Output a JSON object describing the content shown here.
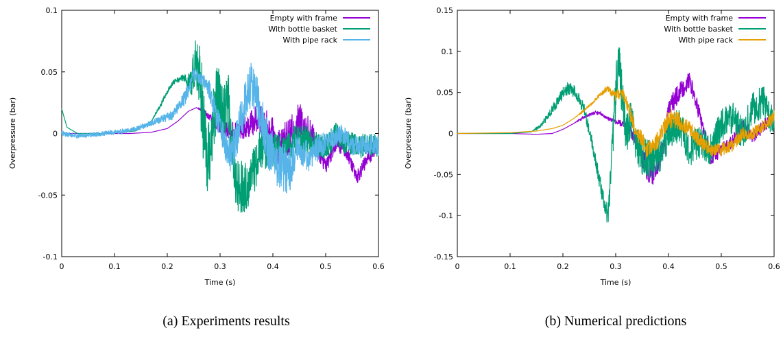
{
  "colors": {
    "empty_frame": "#9400d3",
    "bottle_basket": "#009e73",
    "pipe_rack_exp": "#56b4e9",
    "pipe_rack_num": "#e69f00"
  },
  "chart_data": [
    {
      "type": "line",
      "caption": "(a)  Experiments results",
      "xlabel": "Time (s)",
      "ylabel": "Overpressure (bar)",
      "xlim": [
        0,
        0.6
      ],
      "ylim": [
        -0.1,
        0.1
      ],
      "xticks": [
        "0",
        "0.1",
        "0.2",
        "0.3",
        "0.4",
        "0.5",
        "0.6"
      ],
      "yticks": [
        "-0.1",
        "-0.05",
        "0",
        "0.05",
        "0.1"
      ],
      "ytick_values": [
        -0.1,
        -0.05,
        0,
        0.05,
        0.1
      ],
      "legend_position": "top-right",
      "grid": false,
      "series": [
        {
          "name": "Empty with frame",
          "color_key": "empty_frame",
          "x": [
            0,
            0.03,
            0.08,
            0.13,
            0.17,
            0.2,
            0.22,
            0.24,
            0.255,
            0.27,
            0.29,
            0.31,
            0.33,
            0.35,
            0.37,
            0.39,
            0.41,
            0.43,
            0.45,
            0.47,
            0.49,
            0.5,
            0.52,
            0.54,
            0.56,
            0.58,
            0.6
          ],
          "y": [
            0.0,
            0.0,
            0.0,
            0.0,
            0.001,
            0.004,
            0.01,
            0.018,
            0.021,
            0.018,
            0.008,
            0.003,
            0.002,
            0.005,
            0.012,
            0.005,
            -0.01,
            -0.005,
            0.01,
            0.0,
            -0.015,
            -0.025,
            -0.008,
            -0.015,
            -0.035,
            -0.02,
            -0.01
          ],
          "noise": [
            0,
            0,
            0,
            0,
            0,
            0,
            0,
            0,
            0,
            0.002,
            0.004,
            0.006,
            0.008,
            0.01,
            0.012,
            0.014,
            0.016,
            0.016,
            0.016,
            0.014,
            0.01,
            0.008,
            0.006,
            0.006,
            0.006,
            0.006,
            0.006
          ]
        },
        {
          "name": "With bottle basket",
          "color_key": "bottle_basket",
          "x": [
            0,
            0.01,
            0.03,
            0.08,
            0.14,
            0.17,
            0.19,
            0.205,
            0.215,
            0.23,
            0.245,
            0.255,
            0.265,
            0.275,
            0.285,
            0.295,
            0.305,
            0.315,
            0.33,
            0.345,
            0.36,
            0.38,
            0.4,
            0.42,
            0.44,
            0.46,
            0.48,
            0.5,
            0.52,
            0.54,
            0.56,
            0.58,
            0.6
          ],
          "y": [
            0.02,
            0.005,
            0.0,
            0.0,
            0.002,
            0.01,
            0.025,
            0.038,
            0.043,
            0.045,
            0.04,
            0.065,
            0.03,
            -0.03,
            0.0,
            0.035,
            0.01,
            0.03,
            -0.04,
            -0.045,
            -0.035,
            -0.01,
            -0.015,
            -0.015,
            -0.005,
            -0.005,
            -0.01,
            -0.012,
            0.0,
            -0.008,
            -0.01,
            -0.01,
            -0.01
          ],
          "noise": [
            0,
            0,
            0,
            0,
            0,
            0,
            0.002,
            0.002,
            0.002,
            0.003,
            0.01,
            0.025,
            0.035,
            0.03,
            0.03,
            0.025,
            0.025,
            0.025,
            0.025,
            0.02,
            0.02,
            0.018,
            0.016,
            0.014,
            0.012,
            0.012,
            0.012,
            0.01,
            0.01,
            0.01,
            0.01,
            0.01,
            0.01
          ]
        },
        {
          "name": "With pipe rack",
          "color_key": "pipe_rack_exp",
          "x": [
            0,
            0.03,
            0.08,
            0.12,
            0.15,
            0.18,
            0.21,
            0.235,
            0.25,
            0.265,
            0.28,
            0.29,
            0.3,
            0.31,
            0.32,
            0.33,
            0.345,
            0.36,
            0.375,
            0.39,
            0.41,
            0.43,
            0.45,
            0.47,
            0.49,
            0.51,
            0.53,
            0.55,
            0.57,
            0.59,
            0.6
          ],
          "y": [
            0.0,
            -0.002,
            0.0,
            0.002,
            0.005,
            0.01,
            0.015,
            0.03,
            0.048,
            0.045,
            0.035,
            0.02,
            0.005,
            -0.01,
            -0.02,
            -0.005,
            0.02,
            0.04,
            0.02,
            -0.01,
            -0.025,
            -0.03,
            -0.01,
            -0.02,
            -0.01,
            -0.005,
            0.0,
            -0.01,
            -0.01,
            -0.008,
            -0.01
          ],
          "noise": [
            0.002,
            0.002,
            0.002,
            0.002,
            0.002,
            0.003,
            0.004,
            0.006,
            0.006,
            0.006,
            0.008,
            0.01,
            0.012,
            0.014,
            0.015,
            0.016,
            0.018,
            0.02,
            0.02,
            0.02,
            0.02,
            0.02,
            0.015,
            0.012,
            0.01,
            0.008,
            0.008,
            0.008,
            0.008,
            0.008,
            0.008
          ]
        }
      ]
    },
    {
      "type": "line",
      "caption": "(b) Numerical predictions",
      "xlabel": "Time (s)",
      "ylabel": "Overpressure (bar)",
      "xlim": [
        0,
        0.6
      ],
      "ylim": [
        -0.15,
        0.15
      ],
      "xticks": [
        "0",
        "0.1",
        "0.2",
        "0.3",
        "0.4",
        "0.5",
        "0.6"
      ],
      "yticks": [
        "-0.15",
        "-0.1",
        "-0.05",
        "0",
        "0.05",
        "0.1",
        "0.15"
      ],
      "ytick_values": [
        -0.15,
        -0.1,
        -0.05,
        0,
        0.05,
        0.1,
        0.15
      ],
      "legend_position": "top-right",
      "grid": false,
      "series": [
        {
          "name": "Empty with frame",
          "color_key": "empty_frame",
          "x": [
            0,
            0.1,
            0.15,
            0.18,
            0.2,
            0.22,
            0.24,
            0.26,
            0.27,
            0.28,
            0.3,
            0.32,
            0.34,
            0.36,
            0.37,
            0.38,
            0.39,
            0.4,
            0.42,
            0.44,
            0.46,
            0.48,
            0.5,
            0.52,
            0.54,
            0.56,
            0.58,
            0.6
          ],
          "y": [
            0.0,
            0.0,
            -0.001,
            0.0,
            0.005,
            0.012,
            0.02,
            0.025,
            0.025,
            0.02,
            0.015,
            0.01,
            -0.01,
            -0.045,
            -0.05,
            -0.035,
            -0.02,
            0.03,
            0.05,
            0.065,
            0.02,
            -0.03,
            -0.02,
            -0.01,
            0.01,
            -0.005,
            0.01,
            0.02
          ],
          "noise": [
            0,
            0,
            0,
            0,
            0,
            0,
            0.002,
            0.002,
            0.002,
            0.002,
            0.003,
            0.005,
            0.01,
            0.015,
            0.015,
            0.015,
            0.012,
            0.012,
            0.012,
            0.01,
            0.01,
            0.01,
            0.008,
            0.008,
            0.008,
            0.008,
            0.008,
            0.008
          ]
        },
        {
          "name": "With bottle basket",
          "color_key": "bottle_basket",
          "x": [
            0,
            0.1,
            0.14,
            0.16,
            0.18,
            0.2,
            0.21,
            0.225,
            0.24,
            0.255,
            0.27,
            0.28,
            0.285,
            0.29,
            0.295,
            0.3,
            0.305,
            0.31,
            0.32,
            0.33,
            0.34,
            0.36,
            0.38,
            0.4,
            0.42,
            0.44,
            0.46,
            0.48,
            0.5,
            0.52,
            0.54,
            0.56,
            0.58,
            0.6
          ],
          "y": [
            0.0,
            0.0,
            0.002,
            0.01,
            0.03,
            0.048,
            0.055,
            0.05,
            0.03,
            -0.01,
            -0.06,
            -0.09,
            -0.1,
            -0.06,
            0.0,
            0.05,
            0.1,
            0.06,
            0.0,
            0.02,
            -0.02,
            -0.03,
            -0.03,
            0.0,
            0.01,
            -0.02,
            -0.01,
            -0.02,
            0.01,
            0.02,
            0.0,
            0.03,
            0.04,
            0.01
          ],
          "noise": [
            0,
            0,
            0,
            0.003,
            0.006,
            0.008,
            0.008,
            0.008,
            0.008,
            0.008,
            0.01,
            0.012,
            0.015,
            0.02,
            0.025,
            0.03,
            0.03,
            0.028,
            0.025,
            0.025,
            0.025,
            0.025,
            0.025,
            0.022,
            0.022,
            0.02,
            0.02,
            0.02,
            0.02,
            0.02,
            0.02,
            0.02,
            0.02,
            0.02
          ]
        },
        {
          "name": "With pipe rack",
          "color_key": "pipe_rack_num",
          "x": [
            0,
            0.1,
            0.15,
            0.18,
            0.2,
            0.22,
            0.24,
            0.26,
            0.275,
            0.285,
            0.3,
            0.31,
            0.32,
            0.33,
            0.34,
            0.35,
            0.36,
            0.38,
            0.4,
            0.42,
            0.44,
            0.46,
            0.48,
            0.5,
            0.52,
            0.54,
            0.56,
            0.58,
            0.6
          ],
          "y": [
            0.0,
            0.001,
            0.003,
            0.006,
            0.01,
            0.018,
            0.028,
            0.04,
            0.05,
            0.055,
            0.045,
            0.05,
            0.04,
            0.02,
            0.0,
            -0.01,
            -0.02,
            -0.01,
            0.02,
            0.015,
            0.005,
            -0.01,
            -0.02,
            -0.02,
            -0.015,
            0.0,
            0.0,
            0.01,
            0.02
          ],
          "noise": [
            0,
            0,
            0,
            0,
            0,
            0,
            0.001,
            0.002,
            0.003,
            0.004,
            0.006,
            0.008,
            0.008,
            0.01,
            0.012,
            0.012,
            0.012,
            0.012,
            0.012,
            0.012,
            0.01,
            0.01,
            0.008,
            0.008,
            0.008,
            0.008,
            0.008,
            0.008,
            0.008
          ]
        }
      ]
    }
  ]
}
